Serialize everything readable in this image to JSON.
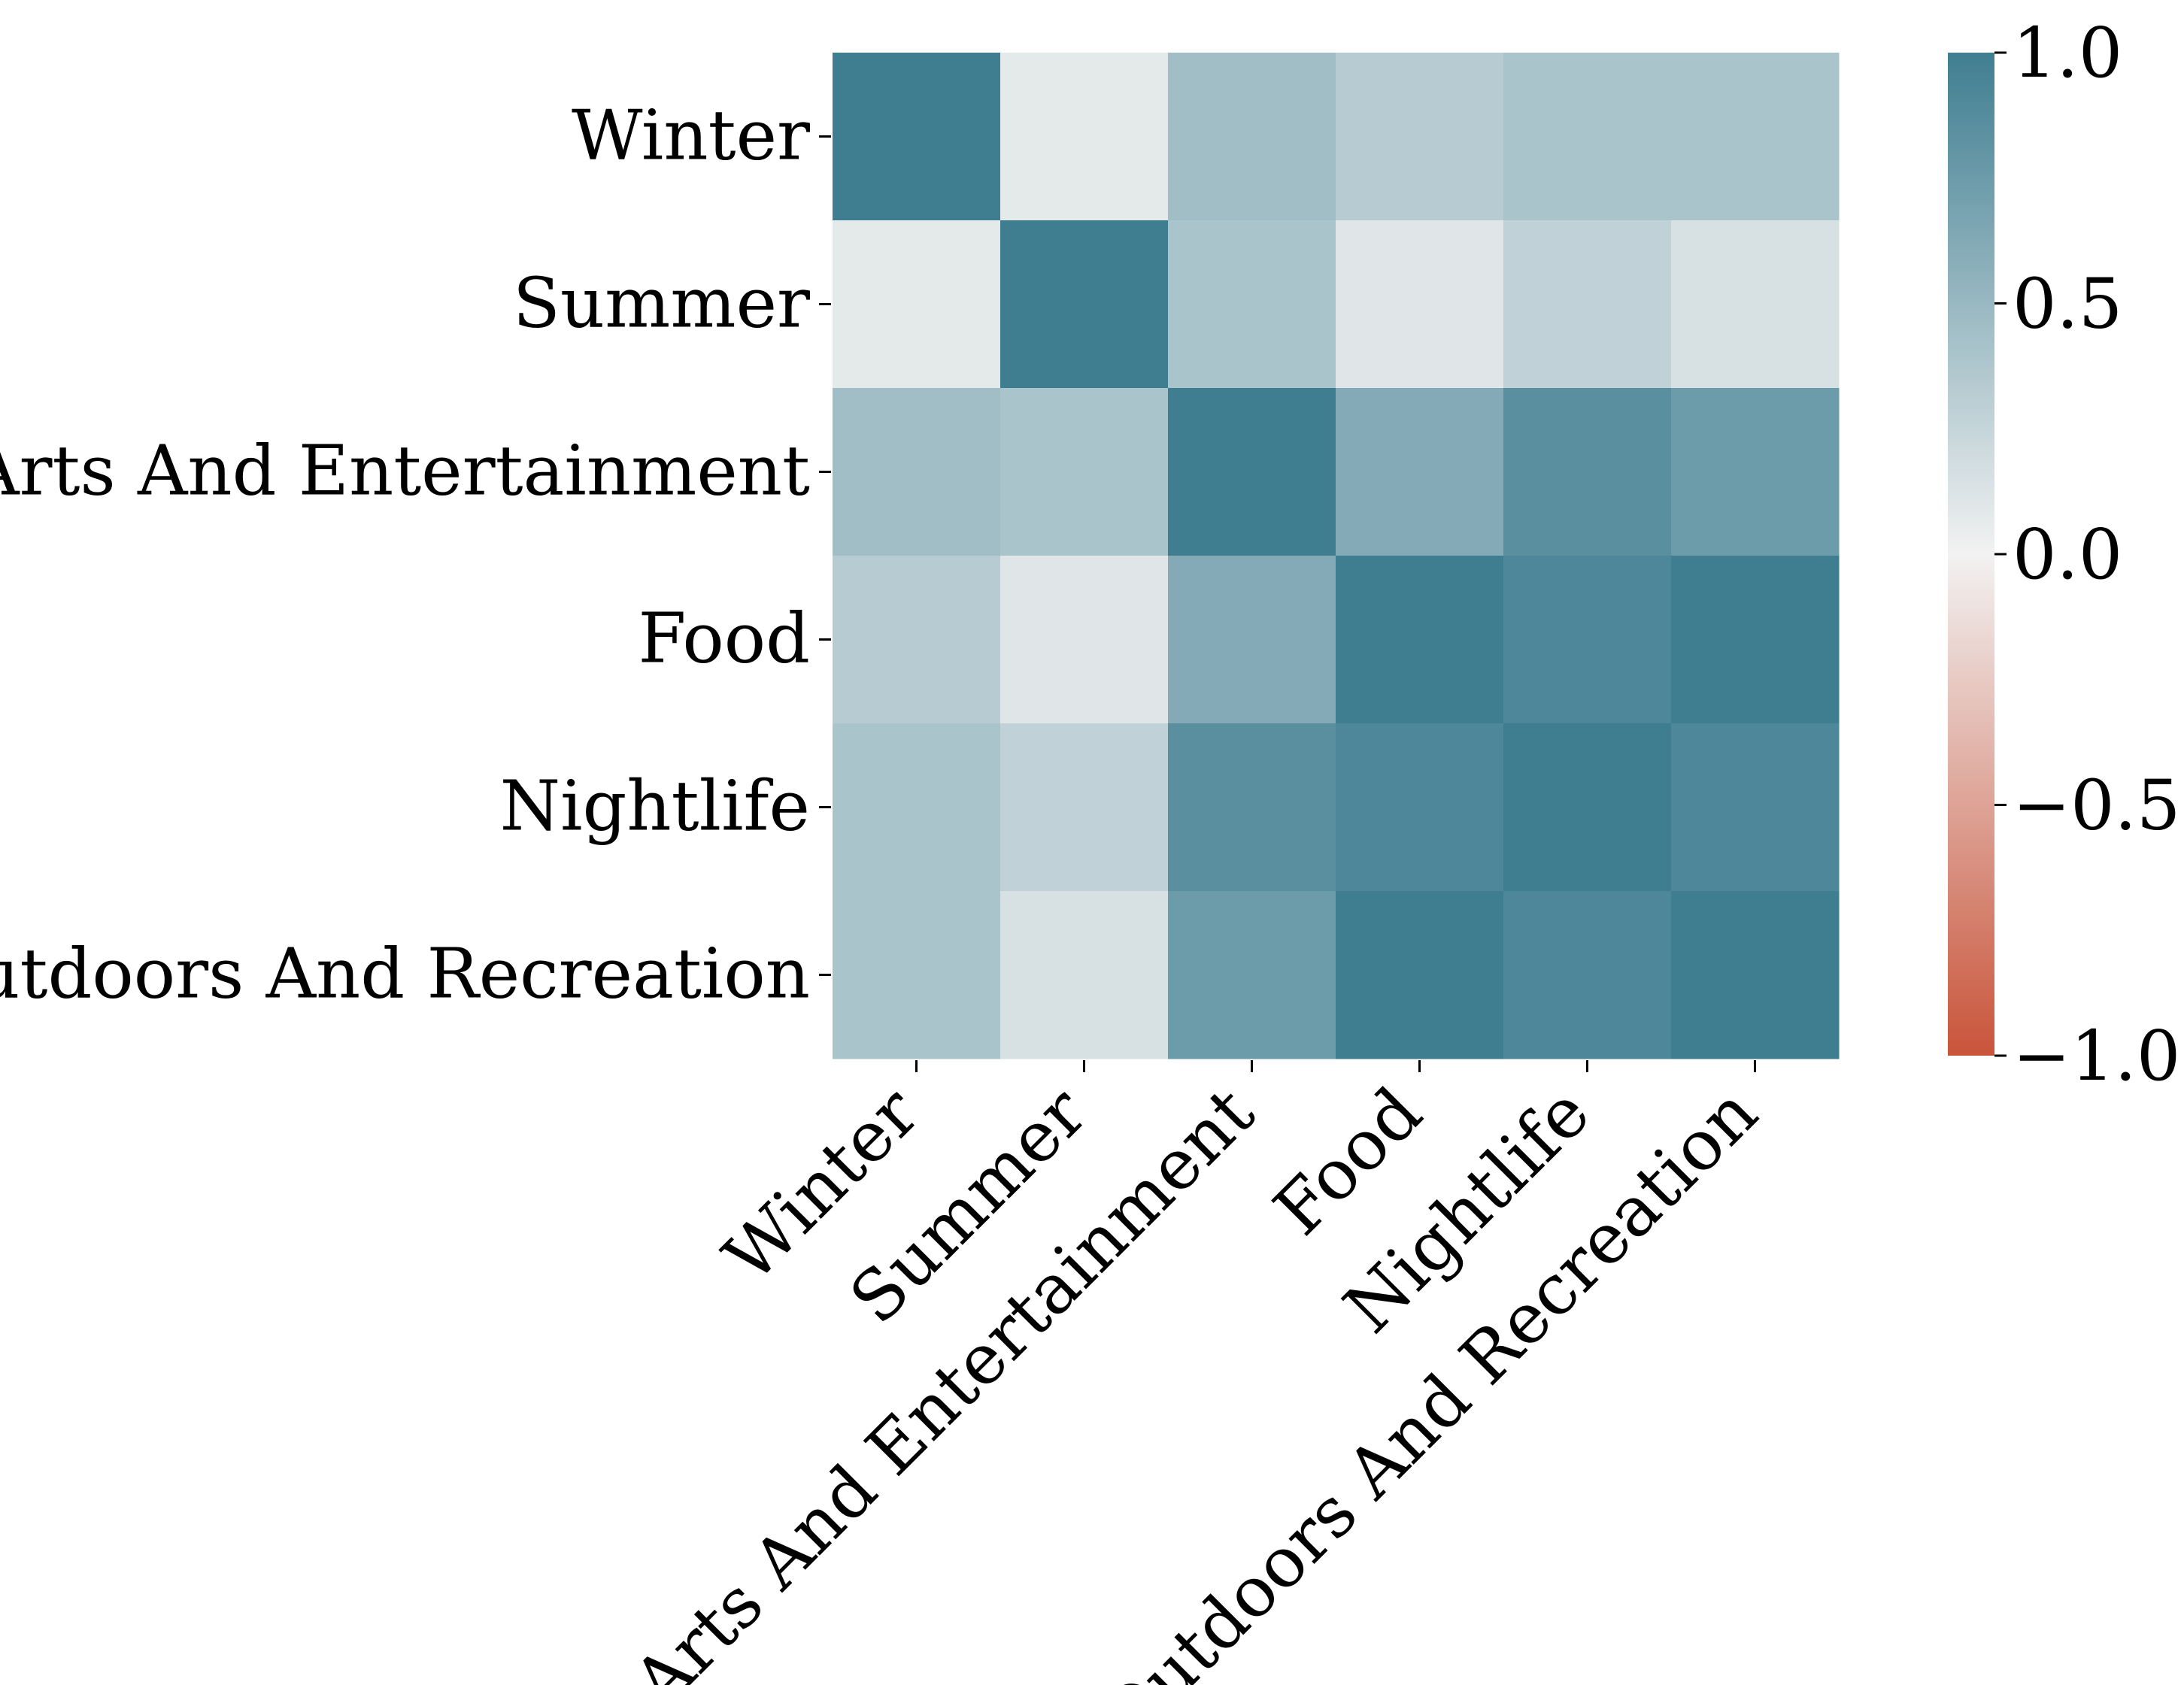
{
  "chart_data": {
    "type": "heatmap",
    "rows": [
      "Winter",
      "Summer",
      "Arts And Entertainment",
      "Food",
      "Nightlife",
      "Outdoors And Recreation"
    ],
    "columns": [
      "Winter",
      "Summer",
      "Arts And Entertainment",
      "Food",
      "Nightlife",
      "Outdoors And Recreation"
    ],
    "values": [
      [
        1.0,
        0.08,
        0.45,
        0.33,
        0.4,
        0.4
      ],
      [
        0.08,
        1.0,
        0.4,
        0.1,
        0.28,
        0.15
      ],
      [
        0.45,
        0.4,
        1.0,
        0.62,
        0.85,
        0.75
      ],
      [
        0.33,
        0.1,
        0.62,
        1.0,
        0.92,
        1.0
      ],
      [
        0.4,
        0.28,
        0.85,
        0.92,
        1.0,
        0.92
      ],
      [
        0.4,
        0.15,
        0.75,
        1.0,
        0.92,
        1.0
      ]
    ],
    "colorbar": {
      "min": -1.0,
      "max": 1.0,
      "ticks": [
        1.0,
        0.5,
        0.0,
        -0.5,
        -1.0
      ],
      "tick_labels": [
        "1.0",
        "0.5",
        "0.0",
        "−0.5",
        "−1.0"
      ]
    },
    "colormap": {
      "negative": "#c9543a",
      "center": "#f2f2f2",
      "positive": "#3f7e91"
    },
    "title": "",
    "xlabel": "",
    "ylabel": ""
  }
}
